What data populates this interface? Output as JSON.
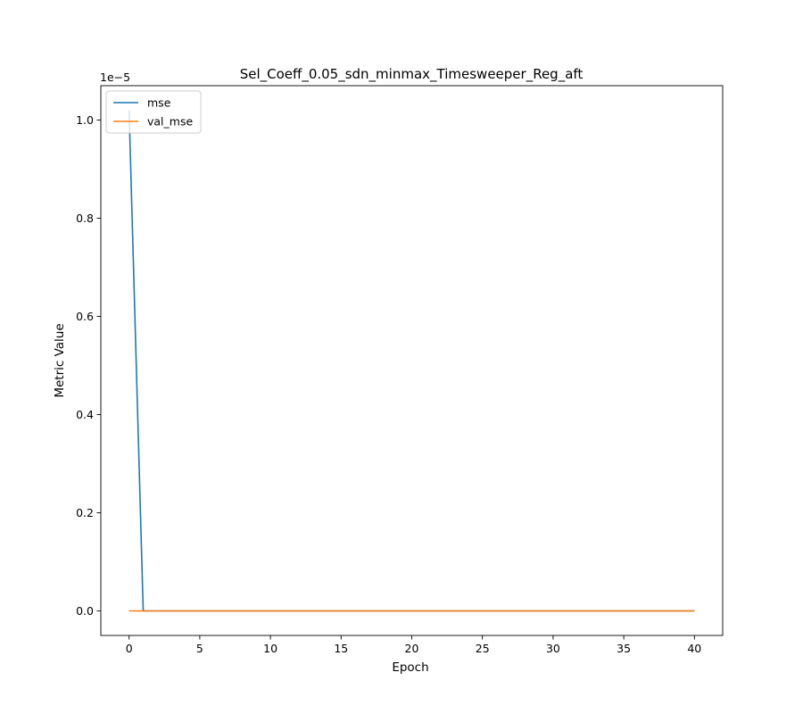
{
  "chart_data": {
    "type": "line",
    "title": "Sel_Coeff_0.05_sdn_minmax_Timesweeper_Reg_aft",
    "xlabel": "Epoch",
    "ylabel": "Metric Value",
    "y_offset_text": "1e−5",
    "xlim": [
      -2,
      42
    ],
    "ylim": [
      -5e-07,
      1.07e-05
    ],
    "x_ticks": [
      0,
      5,
      10,
      15,
      20,
      25,
      30,
      35,
      40
    ],
    "x_tick_labels": [
      "0",
      "5",
      "10",
      "15",
      "20",
      "25",
      "30",
      "35",
      "40"
    ],
    "y_ticks": [
      0,
      2e-06,
      4e-06,
      6e-06,
      8e-06,
      1e-05
    ],
    "y_tick_labels": [
      "0.0",
      "0.2",
      "0.4",
      "0.6",
      "0.8",
      "1.0"
    ],
    "grid": false,
    "legend_position": "top-left",
    "series": [
      {
        "name": "mse",
        "color": "#1f77b4",
        "x": [
          0,
          1,
          2,
          3,
          4,
          5,
          6,
          7,
          8,
          9,
          10,
          11,
          12,
          13,
          14,
          15,
          16,
          17,
          18,
          19,
          20,
          21,
          22,
          23,
          24,
          25,
          26,
          27,
          28,
          29,
          30,
          31,
          32,
          33,
          34,
          35,
          36,
          37,
          38,
          39,
          40
        ],
        "y": [
          1.02e-05,
          0,
          0,
          0,
          0,
          0,
          0,
          0,
          0,
          0,
          0,
          0,
          0,
          0,
          0,
          0,
          0,
          0,
          0,
          0,
          0,
          0,
          0,
          0,
          0,
          0,
          0,
          0,
          0,
          0,
          0,
          0,
          0,
          0,
          0,
          0,
          0,
          0,
          0,
          0,
          0
        ]
      },
      {
        "name": "val_mse",
        "color": "#ff7f0e",
        "x": [
          0,
          1,
          2,
          3,
          4,
          5,
          6,
          7,
          8,
          9,
          10,
          11,
          12,
          13,
          14,
          15,
          16,
          17,
          18,
          19,
          20,
          21,
          22,
          23,
          24,
          25,
          26,
          27,
          28,
          29,
          30,
          31,
          32,
          33,
          34,
          35,
          36,
          37,
          38,
          39,
          40
        ],
        "y": [
          0,
          0,
          0,
          0,
          0,
          0,
          0,
          0,
          0,
          0,
          0,
          0,
          0,
          0,
          0,
          0,
          0,
          0,
          0,
          0,
          0,
          0,
          0,
          0,
          0,
          0,
          0,
          0,
          0,
          0,
          0,
          0,
          0,
          0,
          0,
          0,
          0,
          0,
          0,
          0,
          0
        ]
      }
    ]
  }
}
